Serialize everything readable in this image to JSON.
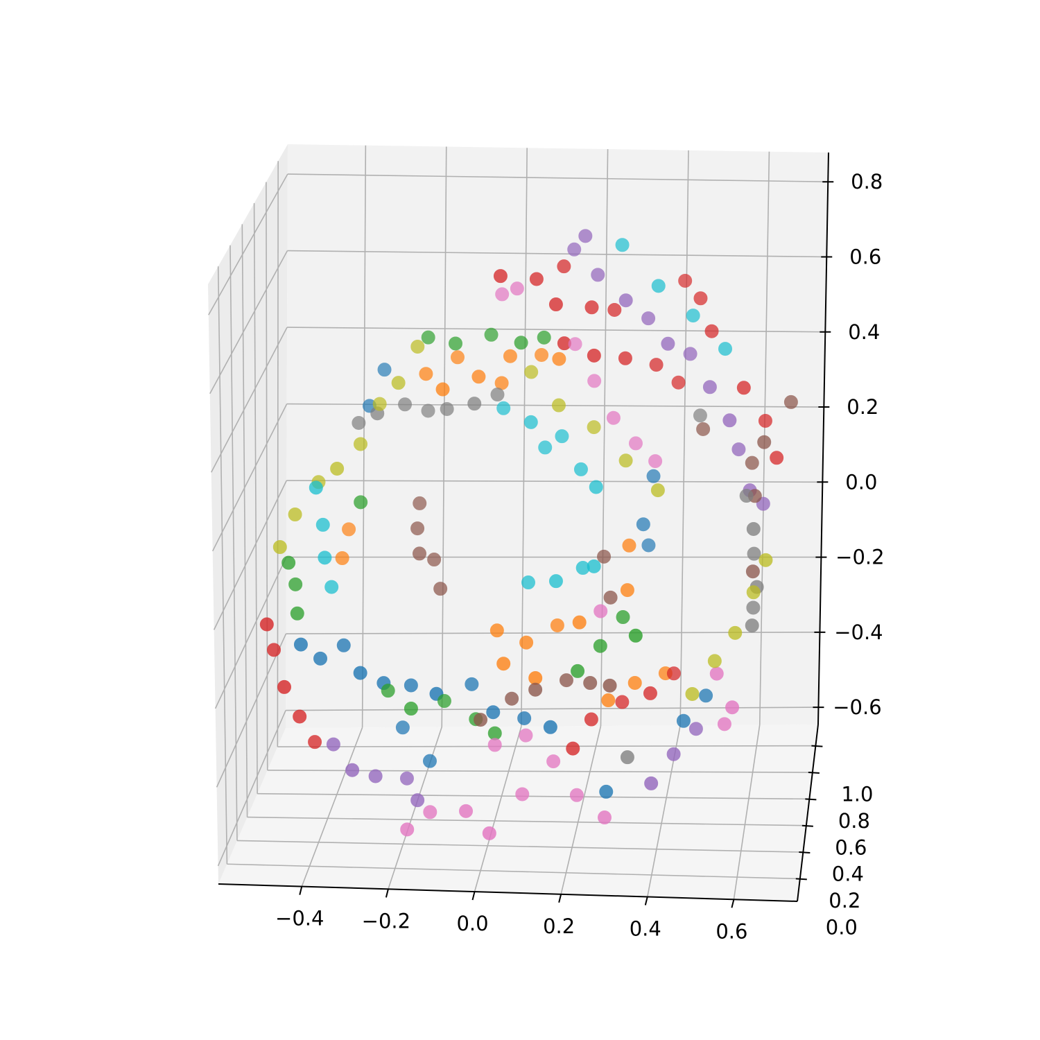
{
  "chart_data": {
    "type": "scatter",
    "xlim": [
      -0.593,
      0.747
    ],
    "ylim": [
      -0.17,
      1.16
    ],
    "zlim": [
      -0.646,
      0.878
    ],
    "xticks": [
      {
        "value": -0.4,
        "label": "−0.4"
      },
      {
        "value": -0.2,
        "label": "−0.2"
      },
      {
        "value": 0,
        "label": "0.0"
      },
      0.2,
      0.4,
      0.6
    ],
    "yticks": [
      {
        "value": 0,
        "label": "0.0"
      },
      0.2,
      0.4,
      0.6,
      0.8,
      {
        "value": 1,
        "label": "1.0"
      }
    ],
    "zticks": [
      {
        "value": -0.6,
        "label": "−0.6"
      },
      {
        "value": -0.4,
        "label": "−0.4"
      },
      {
        "value": -0.2,
        "label": "−0.2"
      },
      {
        "value": 0,
        "label": "0.0"
      },
      0.2,
      0.4,
      0.6,
      0.8
    ],
    "grid": true,
    "series": [
      {
        "color": "#1f77b4",
        "x": [
          -0.45,
          -0.41,
          -0.36,
          -0.31,
          -0.26,
          -0.2,
          -0.13,
          -0.06,
          0.0,
          0.07,
          0.14,
          -0.23,
          -0.16,
          0.36,
          0.34,
          0.35,
          -0.29,
          -0.32,
          0.45,
          0.5,
          0.27
        ],
        "y": [
          0.3,
          0.35,
          0.4,
          0.3,
          0.35,
          0.4,
          0.3,
          0.45,
          0.35,
          0.4,
          0.3,
          0.5,
          0.45,
          0.6,
          0.55,
          0.6,
          0.65,
          0.6,
          0.4,
          0.45,
          0.35
        ],
        "z": [
          -0.17,
          -0.22,
          -0.2,
          -0.24,
          -0.28,
          -0.3,
          -0.29,
          -0.31,
          -0.35,
          -0.38,
          -0.37,
          -0.44,
          -0.51,
          0.19,
          0.08,
          0.01,
          0.44,
          0.36,
          -0.38,
          -0.33,
          -0.55
        ]
      },
      {
        "color": "#ff7f0e",
        "x": [
          -0.18,
          -0.11,
          -0.05,
          0.02,
          0.09,
          0.14,
          -0.13,
          0.0,
          0.02,
          0.07,
          0.14,
          0.2,
          0.1,
          0.0,
          0.27,
          0.33,
          0.4,
          -0.37,
          -0.38,
          0.31,
          0.31
        ],
        "y": [
          0.55,
          0.6,
          0.5,
          0.55,
          0.6,
          0.5,
          0.45,
          0.55,
          0.4,
          0.45,
          0.5,
          0.4,
          0.35,
          0.45,
          0.4,
          0.45,
          0.5,
          0.6,
          0.55,
          0.5,
          0.45
        ],
        "z": [
          0.46,
          0.49,
          0.47,
          0.51,
          0.5,
          0.52,
          0.45,
          0.44,
          -0.24,
          -0.2,
          -0.17,
          -0.13,
          -0.26,
          -0.17,
          -0.33,
          -0.3,
          -0.29,
          0.04,
          -0.02,
          0.04,
          -0.06
        ]
      },
      {
        "color": "#2ca02c",
        "x": [
          -0.18,
          -0.11,
          -0.03,
          0.05,
          0.1,
          -0.49,
          -0.48,
          -0.47,
          -0.26,
          -0.2,
          -0.13,
          -0.05,
          0.0,
          0.2,
          0.25,
          0.3,
          0.34,
          -0.33
        ],
        "y": [
          0.6,
          0.55,
          0.6,
          0.5,
          0.55,
          0.4,
          0.45,
          0.4,
          0.45,
          0.4,
          0.5,
          0.45,
          0.4,
          0.35,
          0.4,
          0.45,
          0.3,
          0.5
        ],
        "z": [
          0.54,
          0.54,
          0.55,
          0.56,
          0.56,
          0.01,
          -0.06,
          -0.12,
          -0.33,
          -0.36,
          -0.37,
          -0.4,
          -0.42,
          -0.24,
          -0.19,
          -0.13,
          -0.13,
          0.14
        ]
      },
      {
        "color": "#d62728",
        "x": [
          0.01,
          0.09,
          0.15,
          0.14,
          0.22,
          0.27,
          0.23,
          0.3,
          0.37,
          0.42,
          0.43,
          0.47,
          0.5,
          0.58,
          0.63,
          0.66,
          0.16,
          -0.53,
          -0.52,
          -0.49,
          -0.46,
          -0.43,
          0.19,
          0.23,
          0.3,
          0.37,
          0.42
        ],
        "y": [
          0.4,
          0.45,
          0.5,
          0.4,
          0.45,
          0.5,
          0.4,
          0.45,
          0.5,
          0.55,
          0.6,
          0.55,
          0.5,
          0.45,
          0.5,
          0.45,
          0.4,
          0.3,
          0.35,
          0.3,
          0.35,
          0.4,
          0.35,
          0.4,
          0.45,
          0.4,
          0.5
        ],
        "z": [
          0.76,
          0.74,
          0.76,
          0.69,
          0.67,
          0.65,
          0.56,
          0.54,
          0.51,
          0.45,
          0.7,
          0.67,
          0.6,
          0.47,
          0.37,
          0.29,
          0.59,
          -0.12,
          -0.2,
          -0.28,
          -0.37,
          -0.45,
          -0.44,
          -0.38,
          -0.35,
          -0.31,
          -0.29
        ]
      },
      {
        "color": "#9467bd",
        "x": [
          0.2,
          0.17,
          0.23,
          0.3,
          0.35,
          0.4,
          0.45,
          0.5,
          0.55,
          0.57,
          0.6,
          0.63,
          -0.38,
          -0.33,
          -0.28,
          -0.21,
          -0.18,
          0.38,
          0.43,
          0.48
        ],
        "y": [
          0.5,
          0.55,
          0.5,
          0.45,
          0.5,
          0.45,
          0.5,
          0.45,
          0.4,
          0.45,
          0.4,
          0.45,
          0.35,
          0.3,
          0.35,
          0.4,
          0.35,
          0.3,
          0.35,
          0.4
        ],
        "z": [
          0.84,
          0.79,
          0.74,
          0.69,
          0.63,
          0.58,
          0.54,
          0.47,
          0.4,
          0.31,
          0.22,
          0.17,
          -0.44,
          -0.49,
          -0.52,
          -0.54,
          -0.58,
          -0.51,
          -0.45,
          -0.4
        ]
      },
      {
        "color": "#8c564b",
        "x": [
          -0.2,
          -0.2,
          -0.19,
          -0.16,
          -0.14,
          -0.03,
          0.04,
          0.1,
          0.17,
          0.23,
          0.28,
          0.69,
          0.63,
          0.6,
          0.61,
          0.61,
          0.48,
          0.27,
          0.25
        ],
        "y": [
          0.6,
          0.55,
          0.5,
          0.55,
          0.5,
          0.35,
          0.4,
          0.35,
          0.4,
          0.35,
          0.3,
          0.5,
          0.45,
          0.5,
          0.45,
          0.4,
          0.55,
          0.45,
          0.5
        ],
        "z": [
          0.11,
          0.06,
          0.01,
          -0.02,
          -0.08,
          -0.37,
          -0.33,
          -0.29,
          -0.28,
          -0.27,
          -0.26,
          0.42,
          0.33,
          0.26,
          0.19,
          0.01,
          0.33,
          -0.08,
          0.01
        ]
      },
      {
        "color": "#e377c2",
        "x": [
          -0.2,
          -0.15,
          -0.06,
          0.0,
          0.07,
          0.14,
          0.2,
          0.27,
          0.0,
          0.07,
          0.0,
          0.04,
          0.17,
          0.22,
          0.27,
          0.32,
          0.37,
          0.53,
          0.57,
          0.55,
          0.25
        ],
        "y": [
          0.3,
          0.35,
          0.3,
          0.25,
          0.35,
          0.4,
          0.35,
          0.3,
          0.4,
          0.45,
          0.55,
          0.5,
          0.6,
          0.55,
          0.5,
          0.55,
          0.5,
          0.35,
          0.3,
          0.35,
          0.4
        ],
        "z": [
          -0.64,
          -0.61,
          -0.59,
          -0.63,
          -0.56,
          -0.49,
          -0.56,
          -0.6,
          -0.45,
          -0.44,
          0.67,
          0.7,
          0.53,
          0.45,
          0.37,
          0.29,
          0.26,
          -0.24,
          -0.31,
          -0.37,
          -0.1
        ]
      },
      {
        "color": "#7f7f7f",
        "x": [
          -0.34,
          -0.29,
          -0.23,
          -0.18,
          -0.13,
          -0.06,
          -0.01,
          0.59,
          0.61,
          0.61,
          0.62,
          0.61,
          0.61,
          0.32,
          0.47
        ],
        "y": [
          0.55,
          0.5,
          0.55,
          0.6,
          0.55,
          0.5,
          0.55,
          0.45,
          0.4,
          0.45,
          0.4,
          0.45,
          0.4,
          0.35,
          0.6
        ],
        "z": [
          0.33,
          0.37,
          0.38,
          0.35,
          0.37,
          0.4,
          0.41,
          0.19,
          0.12,
          0.04,
          -0.03,
          -0.1,
          -0.13,
          -0.46,
          0.35
        ]
      },
      {
        "color": "#bcbd22",
        "x": [
          -0.2,
          -0.24,
          -0.29,
          -0.33,
          -0.38,
          -0.43,
          -0.48,
          -0.51,
          0.07,
          0.14,
          0.22,
          0.3,
          0.38,
          0.47,
          0.52,
          0.57,
          0.61,
          0.64
        ],
        "y": [
          0.55,
          0.5,
          0.55,
          0.5,
          0.45,
          0.5,
          0.45,
          0.4,
          0.55,
          0.5,
          0.55,
          0.5,
          0.45,
          0.4,
          0.45,
          0.4,
          0.45,
          0.4
        ],
        "z": [
          0.53,
          0.45,
          0.38,
          0.29,
          0.24,
          0.19,
          0.12,
          0.05,
          0.47,
          0.4,
          0.33,
          0.26,
          0.2,
          -0.31,
          -0.24,
          -0.15,
          -0.06,
          0.04
        ]
      },
      {
        "color": "#17becf",
        "x": [
          0.0,
          0.07,
          0.14,
          0.19,
          0.23,
          0.1,
          0.28,
          0.37,
          0.45,
          0.53,
          0.07,
          0.14,
          0.2,
          0.23,
          -0.43,
          -0.42,
          -0.41,
          -0.4
        ],
        "y": [
          0.6,
          0.55,
          0.6,
          0.55,
          0.5,
          0.6,
          0.6,
          0.55,
          0.6,
          0.55,
          0.5,
          0.45,
          0.5,
          0.45,
          0.45,
          0.5,
          0.45,
          0.5
        ],
        "z": [
          0.36,
          0.34,
          0.29,
          0.22,
          0.19,
          0.26,
          0.79,
          0.7,
          0.61,
          0.54,
          -0.06,
          -0.04,
          -0.02,
          0.0,
          0.19,
          0.08,
          0.01,
          -0.08
        ]
      }
    ]
  }
}
